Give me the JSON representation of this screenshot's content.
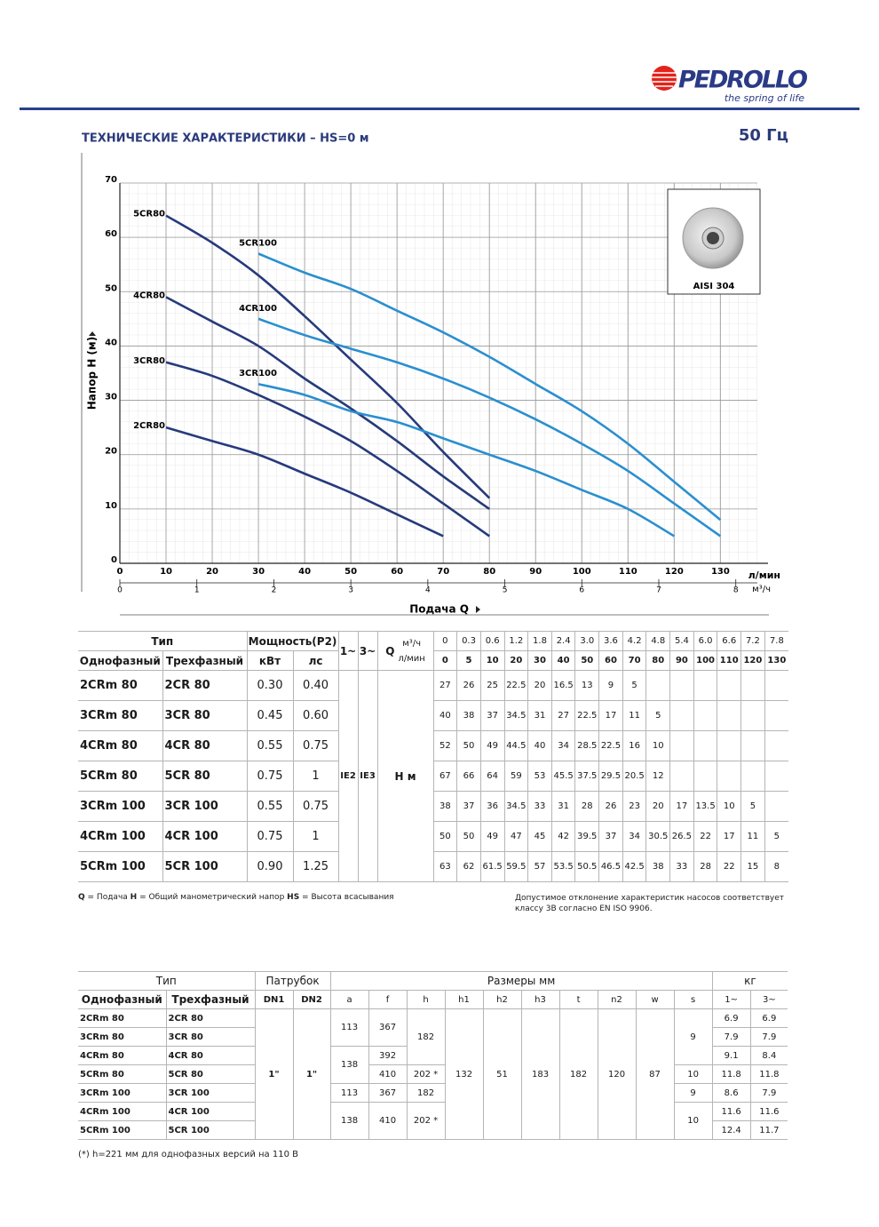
{
  "header": {
    "brand": "PEDROLLO",
    "slogan": "the spring of life",
    "title": "ТЕХНИЧЕСКИЕ ХАРАКТЕРИСТИКИ – HS=0 м",
    "frequency": "50 Гц"
  },
  "chart_data": {
    "type": "line",
    "y_label": "Напор H (м)",
    "x_label": "Подача Q",
    "x_unit": "л/мин",
    "x2_unit": "м³/ч",
    "x": [
      10,
      20,
      30,
      40,
      50,
      60,
      70,
      80,
      90,
      100,
      110,
      120,
      130
    ],
    "series": [
      {
        "name": "2CR80",
        "color": "#263a7c",
        "values": [
          25,
          22.5,
          20,
          16.5,
          13,
          9,
          5,
          null,
          null,
          null,
          null,
          null,
          null
        ]
      },
      {
        "name": "3CR80",
        "color": "#263a7c",
        "values": [
          37,
          34.5,
          31,
          27,
          22.5,
          17,
          11,
          5,
          null,
          null,
          null,
          null,
          null
        ]
      },
      {
        "name": "4CR80",
        "color": "#263a7c",
        "values": [
          49,
          44.5,
          40,
          34,
          28.5,
          22.5,
          16,
          10,
          null,
          null,
          null,
          null,
          null
        ]
      },
      {
        "name": "5CR80",
        "color": "#263a7c",
        "values": [
          64,
          59,
          53,
          45.5,
          37.5,
          29.5,
          20.5,
          12,
          null,
          null,
          null,
          null,
          null
        ]
      },
      {
        "name": "3CR100",
        "color": "#2a8fd0",
        "values": [
          null,
          null,
          33,
          31,
          28,
          26,
          23,
          20,
          17,
          13.5,
          10,
          5,
          null
        ]
      },
      {
        "name": "4CR100",
        "color": "#2a8fd0",
        "values": [
          null,
          null,
          45,
          42,
          39.5,
          37,
          34,
          30.5,
          26.5,
          22,
          17,
          11,
          5
        ]
      },
      {
        "name": "5CR100",
        "color": "#2a8fd0",
        "values": [
          null,
          null,
          57,
          53.5,
          50.5,
          46.5,
          42.5,
          38,
          33,
          28,
          22,
          15,
          8
        ]
      }
    ],
    "xlim": [
      0,
      138
    ],
    "xticks": [
      0,
      10,
      20,
      30,
      40,
      50,
      60,
      70,
      80,
      90,
      100,
      110,
      120,
      130
    ],
    "ylim": [
      0,
      70
    ],
    "yticks": [
      0,
      10,
      20,
      30,
      40,
      50,
      60,
      70
    ],
    "x2lim": [
      0,
      8.28
    ],
    "x2ticks": [
      0,
      1,
      2,
      3,
      4,
      5,
      6,
      7,
      8
    ],
    "grid": true,
    "inset_label": "AISI 304"
  },
  "table1": {
    "type_header": "Тип",
    "single_header": "Однофазный",
    "three_header": "Трехфазный",
    "power_header": "Мощность(P2)",
    "kw_header": "кВт",
    "hp_header": "лс",
    "phase_headers": [
      "1~",
      "3~"
    ],
    "q_header": "Q",
    "m3h_unit": "м³/ч",
    "lmin_unit": "л/мин",
    "m3h": [
      "0",
      "0.3",
      "0.6",
      "1.2",
      "1.8",
      "2.4",
      "3.0",
      "3.6",
      "4.2",
      "4.8",
      "5.4",
      "6.0",
      "6.6",
      "7.2",
      "7.8"
    ],
    "lmin": [
      "0",
      "5",
      "10",
      "20",
      "30",
      "40",
      "50",
      "60",
      "70",
      "80",
      "90",
      "100",
      "110",
      "120",
      "130"
    ],
    "efficiency": [
      "IE2",
      "IE3"
    ],
    "head_unit": "H м",
    "rows": [
      {
        "single": "2CRm 80",
        "three": "2CR 80",
        "kw": "0.30",
        "hp": "0.40",
        "head": [
          27,
          26,
          25,
          22.5,
          20,
          16.5,
          13,
          9,
          5,
          null,
          null,
          null,
          null,
          null,
          null
        ]
      },
      {
        "single": "3CRm 80",
        "three": "3CR 80",
        "kw": "0.45",
        "hp": "0.60",
        "head": [
          40,
          38,
          37,
          34.5,
          31,
          27,
          22.5,
          17,
          11,
          5,
          null,
          null,
          null,
          null,
          null
        ]
      },
      {
        "single": "4CRm 80",
        "three": "4CR 80",
        "kw": "0.55",
        "hp": "0.75",
        "head": [
          52,
          50,
          49,
          44.5,
          40,
          34,
          28.5,
          22.5,
          16,
          10,
          null,
          null,
          null,
          null,
          null
        ]
      },
      {
        "single": "5CRm 80",
        "three": "5CR 80",
        "kw": "0.75",
        "hp": "1",
        "head": [
          67,
          66,
          64,
          59,
          53,
          45.5,
          37.5,
          29.5,
          20.5,
          12,
          null,
          null,
          null,
          null,
          null
        ]
      },
      {
        "single": "3CRm 100",
        "three": "3CR 100",
        "kw": "0.55",
        "hp": "0.75",
        "head": [
          38,
          37,
          36,
          34.5,
          33,
          31,
          28,
          26,
          23,
          20,
          17,
          13.5,
          10,
          5,
          null
        ]
      },
      {
        "single": "4CRm 100",
        "three": "4CR 100",
        "kw": "0.75",
        "hp": "1",
        "head": [
          50,
          50,
          49,
          47,
          45,
          42,
          39.5,
          37,
          34,
          30.5,
          26.5,
          22,
          17,
          11,
          5
        ]
      },
      {
        "single": "5CRm 100",
        "three": "5CR 100",
        "kw": "0.90",
        "hp": "1.25",
        "head": [
          63,
          62,
          61.5,
          59.5,
          57,
          53.5,
          50.5,
          46.5,
          42.5,
          38,
          33,
          28,
          22,
          15,
          8
        ]
      }
    ]
  },
  "notes": {
    "legend": [
      {
        "key": "Q",
        "text": "= Подача"
      },
      {
        "key": "H",
        "text": "= Общий манометрический напор"
      },
      {
        "key": "HS",
        "text": "= Высота всасывания"
      }
    ],
    "tolerance": "Допустимое отклонение характеристик насосов соответствует классу 3B согласно EN ISO 9906."
  },
  "table2": {
    "type_header": "Тип",
    "single_header": "Однофазный",
    "three_header": "Трехфазный",
    "port_header": "Патрубок",
    "port_columns": [
      "DN1",
      "DN2"
    ],
    "dims_header": "Размеры мм",
    "dim_columns": [
      "a",
      "f",
      "h",
      "h1",
      "h2",
      "h3",
      "t",
      "n2",
      "w",
      "s"
    ],
    "weight_header": "кг",
    "weight_columns": [
      "1~",
      "3~"
    ],
    "rows": [
      [
        "2CRm 80",
        "2CR 80",
        "1\"",
        "1\"",
        "113",
        "367",
        "182",
        "132",
        "51",
        "183",
        "182",
        "120",
        "87",
        "9",
        "6.9",
        "6.9"
      ],
      [
        "3CRm 80",
        "3CR 80",
        "7.9",
        "7.9"
      ],
      [
        "4CRm 80",
        "4CR 80",
        "138",
        "392",
        "9.1",
        "8.4"
      ],
      [
        "5CRm 80",
        "5CR 80",
        "410",
        "202 *",
        "10",
        "11.8",
        "11.8"
      ],
      [
        "3CRm 100",
        "3CR 100",
        "113",
        "367",
        "182",
        "9",
        "8.6",
        "7.9"
      ],
      [
        "4CRm 100",
        "4CR 100",
        "138",
        "410",
        "202 *",
        "10",
        "11.6",
        "11.6"
      ],
      [
        "5CRm 100",
        "5CR 100",
        "12.4",
        "11.7"
      ]
    ]
  },
  "footnote": "(*) h=221 мм для однофазных версий на 110 В"
}
